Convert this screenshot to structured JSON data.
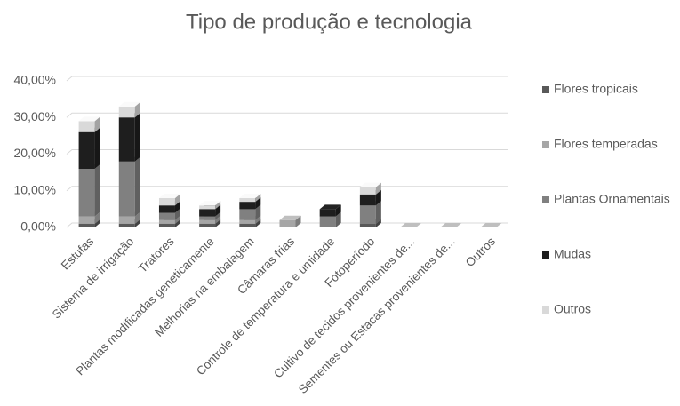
{
  "chart_data": {
    "type": "bar3d_stacked",
    "title": "Tipo de produção e tecnologia",
    "categories": [
      "Estufas",
      "Sistema de irrigação",
      "Tratores",
      "Plantas modificadas geneticamente",
      "Melhorias na embalagem",
      "Câmaras frias",
      "Controle de temperatura e umidade",
      "Fotoperíodo",
      "Cultivo de tecidos provenientes de...",
      "Sementes ou Estacas provenientes de...",
      "Outros"
    ],
    "series": [
      {
        "name": "Flores tropicais",
        "color": "#595959",
        "values": [
          1,
          1,
          1,
          1,
          1,
          0,
          0,
          1,
          0,
          0,
          0
        ]
      },
      {
        "name": "Flores temperadas",
        "color": "#a6a6a6",
        "values": [
          2,
          2,
          1,
          1,
          1,
          2,
          0,
          0,
          0,
          0,
          0
        ]
      },
      {
        "name": "Plantas Ornamentais",
        "color": "#808080",
        "values": [
          13,
          15,
          2,
          1,
          3,
          0,
          3,
          5,
          0,
          0,
          0
        ]
      },
      {
        "name": "Mudas",
        "color": "#1e1e1e",
        "values": [
          10,
          12,
          2,
          2,
          2,
          0,
          2,
          3,
          0,
          0,
          0
        ]
      },
      {
        "name": "Outros",
        "color": "#d9d9d9",
        "values": [
          3,
          3,
          2,
          1,
          1,
          0,
          0,
          2,
          0,
          0,
          0
        ]
      }
    ],
    "ylim": [
      0,
      40
    ],
    "yticks": [
      {
        "value": 0,
        "label": "0,00%"
      },
      {
        "value": 10,
        "label": "10,00%"
      },
      {
        "value": 20,
        "label": "20,00%"
      },
      {
        "value": 30,
        "label": "30,00%"
      },
      {
        "value": 40,
        "label": "40,00%"
      }
    ],
    "grid": true
  }
}
